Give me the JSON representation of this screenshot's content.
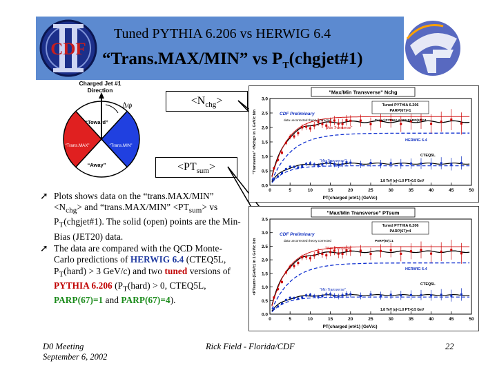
{
  "header": {
    "title_line1": "Tuned PYTHIA 6.206 vs HERWIG 6.4",
    "title_line2_main": "“Trans.MAX/MIN” vs P",
    "title_line2_sub": "T",
    "title_line2_tail": "(chgjet#1)",
    "cdf_logo_text": "CDF",
    "cdf_logo_roman": "II",
    "color_band": "#5c8ad0"
  },
  "diagram": {
    "title": "Charged Jet #1 Direction",
    "delta_phi": "Δφ",
    "regions": {
      "toward": "“Toward”",
      "away": "“Away”",
      "transmax": "“Trans.MAX”",
      "transmin": "“Trans.MIN”"
    },
    "colors": {
      "toward": "#ffffff",
      "away": "#ffffff",
      "transmax": "#e02020",
      "transmin": "#2040e0"
    }
  },
  "callouts": {
    "nchg": {
      "open": "<N",
      "sub": "chg",
      "close": ">"
    },
    "ptsum": {
      "open": "<PT",
      "sub": "sum",
      "close": ">"
    }
  },
  "bullets": {
    "b1": {
      "t1": "Plots shows data on the “trans.MAX/MIN” <N",
      "s1": "chg",
      "t2": "> and “trans.MAX/MIN” <PT",
      "s2": "sum",
      "t3": "> vs P",
      "s3": "T",
      "t4": "(chgjet#1). The solid (open) points are the Min-Bias (JET20) data."
    },
    "b2": {
      "t1": "The data are compared with the QCD Monte-Carlo predictions of",
      "herwig": "HERWIG 6.4",
      "t2": "(CTEQ5L, P",
      "s1": "T",
      "t3": "(hard) > 3 GeV/c) and two",
      "tuned": "tuned",
      "t4": "versions of",
      "pythia": "PYTHIA 6.206",
      "t5": "(P",
      "s2": "T",
      "t6": "(hard) > 0, CTEQ5L,",
      "parp1": "PARP(67)=1",
      "t7": "and",
      "parp4": "PARP(67)=4",
      "t8": ")."
    }
  },
  "plots": [
    {
      "plot_title": "\"Max/Min Transverse\" Nchg",
      "prelim": "CDF Preliminary",
      "uncorrected": "data uncorrected theory corrected",
      "legend_top": "Tuned PYTHIA 6.206",
      "legend_top2": "PARP(67)=1",
      "legend_mid": "Tuned PYTHIA 6.206 PARP(67)=4",
      "max_label": "\"Max Transverse\"",
      "min_label": "\"Min Transverse\"",
      "herwig_label": "HERWIG 6.4",
      "cteq_label": "CTEQ5L",
      "cut_label": "1.8 TeV |η|<1.0 PT>0.5 GeV",
      "ylabel": "\"Transverse\" <Nchg> in 1 GeV/c bin",
      "xlabel": "PT(charged jet#1) (GeV/c)",
      "yticks": [
        "0.0",
        "0.5",
        "1.0",
        "1.5",
        "2.0",
        "2.5",
        "3.0"
      ],
      "xticks": [
        "0",
        "5",
        "10",
        "15",
        "20",
        "25",
        "30",
        "35",
        "40",
        "45",
        "50"
      ]
    },
    {
      "plot_title": "\"Max/Min Transverse\" PTsum",
      "prelim": "CDF Preliminary",
      "uncorrected": "data uncorrected theory corrected",
      "legend_top": "Tuned PYTHIA 6.206",
      "legend_top2": "PARP(67)=4",
      "legend_mid": "PARP(67)=1",
      "max_label": "\"Max Transverse\"",
      "min_label": "\"Min Transverse\"",
      "herwig_label": "HERWIG 6.4",
      "cteq_label": "CTEQ5L",
      "cut_label": "1.8 TeV |η|<1.0 PT>0.5 GeV",
      "ylabel": "<PTsum> (GeV/c) in 1 GeV/c bin",
      "xlabel": "PT(charged jet#1) (GeV/c)",
      "yticks": [
        "0.0",
        "0.5",
        "1.0",
        "1.5",
        "2.0",
        "2.5",
        "3.0",
        "3.5"
      ],
      "xticks": [
        "0",
        "5",
        "10",
        "15",
        "20",
        "25",
        "30",
        "35",
        "40",
        "45",
        "50"
      ]
    }
  ],
  "footer": {
    "left1": "D0 Meeting",
    "left2": "September 6, 2002",
    "center": "Rick Field - Florida/CDF",
    "page": "22"
  }
}
